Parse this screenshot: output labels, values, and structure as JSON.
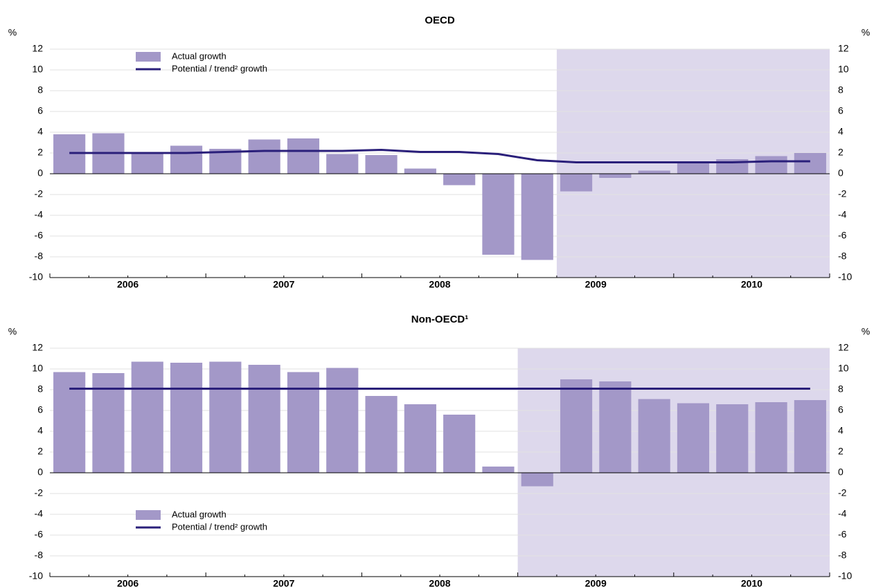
{
  "chart_data": [
    {
      "type": "bar",
      "title": "OECD",
      "y_unit": "%",
      "categories": [
        null,
        null,
        null,
        null,
        null,
        null,
        null,
        null,
        null,
        null,
        null,
        null,
        null,
        null,
        null,
        null,
        null,
        null,
        null,
        null
      ],
      "year_labels": [
        "2006",
        "2007",
        "2008",
        "2009",
        "2010"
      ],
      "series": [
        {
          "name": "Actual growth",
          "color": "#a398c8",
          "kind": "bar",
          "values": [
            3.8,
            3.9,
            1.9,
            2.7,
            2.4,
            3.3,
            3.4,
            1.9,
            1.8,
            0.5,
            -1.1,
            -7.8,
            -8.3,
            -1.7,
            -0.4,
            0.3,
            1.0,
            1.4,
            1.7,
            2.0
          ]
        },
        {
          "name": "Potential / trend² growth",
          "color": "#2a1f7a",
          "kind": "line",
          "values": [
            2.0,
            2.0,
            2.0,
            2.0,
            2.1,
            2.2,
            2.2,
            2.2,
            2.3,
            2.1,
            2.1,
            1.9,
            1.3,
            1.1,
            1.1,
            1.1,
            1.1,
            1.1,
            1.2,
            1.2
          ]
        }
      ],
      "ylim": [
        -10,
        12
      ],
      "yticks": [
        -10,
        -8,
        -6,
        -4,
        -2,
        0,
        2,
        4,
        6,
        8,
        10,
        12
      ],
      "y2lim": [
        -10,
        12
      ],
      "y2ticks": [
        -10,
        -8,
        -6,
        -4,
        -2,
        0,
        2,
        4,
        6,
        8,
        10,
        12
      ],
      "grid": true,
      "legend": "upper left"
    },
    {
      "type": "bar",
      "title": "Non-OECD¹",
      "y_unit": "%",
      "categories": [
        null,
        null,
        null,
        null,
        null,
        null,
        null,
        null,
        null,
        null,
        null,
        null,
        null,
        null,
        null,
        null,
        null,
        null,
        null,
        null
      ],
      "year_labels": [
        "2006",
        "2007",
        "2008",
        "2009",
        "2010"
      ],
      "series": [
        {
          "name": "Actual growth",
          "color": "#a398c8",
          "kind": "bar",
          "values": [
            9.7,
            9.6,
            10.7,
            10.6,
            10.7,
            10.4,
            9.7,
            10.1,
            7.4,
            6.6,
            5.6,
            0.6,
            -1.3,
            9.0,
            8.8,
            7.1,
            6.7,
            6.6,
            6.8,
            7.0
          ]
        },
        {
          "name": "Potential / trend² growth",
          "color": "#2a1f7a",
          "kind": "line",
          "values": [
            8.1,
            8.1,
            8.1,
            8.1,
            8.1,
            8.1,
            8.1,
            8.1,
            8.1,
            8.1,
            8.1,
            8.1,
            8.1,
            8.1,
            8.1,
            8.1,
            8.1,
            8.1,
            8.1,
            8.1
          ]
        }
      ],
      "ylim": [
        -10,
        12
      ],
      "yticks": [
        -10,
        -8,
        -6,
        -4,
        -2,
        0,
        2,
        4,
        6,
        8,
        10,
        12
      ],
      "y2lim": [
        -10,
        12
      ],
      "y2ticks": [
        -10,
        -8,
        -6,
        -4,
        -2,
        0,
        2,
        4,
        6,
        8,
        10,
        12
      ],
      "grid": true,
      "legend": "lower left"
    }
  ]
}
